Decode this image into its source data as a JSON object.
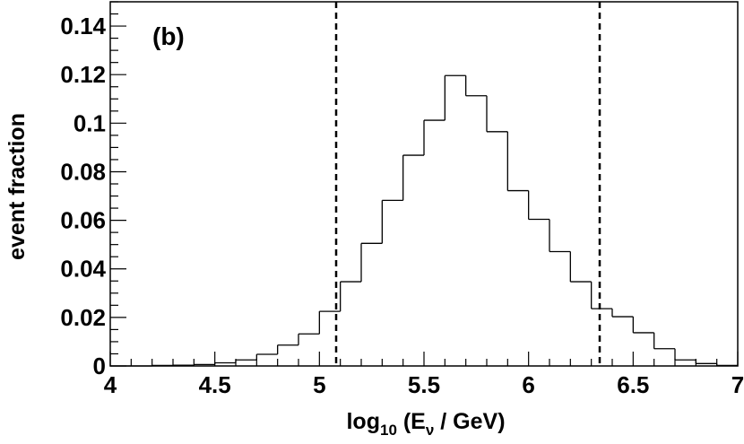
{
  "chart_data": {
    "type": "bar",
    "subtype": "step-histogram",
    "panel_label": "(b)",
    "xlabel": {
      "prefix": "log",
      "prefix_sub": "10",
      "mid": " (E",
      "mid_sub": "ν",
      "suffix": " / GeV)"
    },
    "ylabel": "event fraction",
    "xlim": [
      4,
      7
    ],
    "ylim": [
      0,
      0.15
    ],
    "x_ticks": [
      4,
      4.5,
      5,
      5.5,
      6,
      6.5,
      7
    ],
    "x_tick_labels": [
      "4",
      "4.5",
      "5",
      "5.5",
      "6",
      "6.5",
      "7"
    ],
    "y_ticks": [
      0,
      0.02,
      0.04,
      0.06,
      0.08,
      0.1,
      0.12,
      0.14
    ],
    "y_tick_labels": [
      "0",
      "0.02",
      "0.04",
      "0.06",
      "0.08",
      "0.1",
      "0.12",
      "0.14"
    ],
    "bin_edges": [
      4.0,
      4.1,
      4.2,
      4.3,
      4.4,
      4.5,
      4.6,
      4.7,
      4.8,
      4.9,
      5.0,
      5.1,
      5.2,
      5.3,
      5.4,
      5.5,
      5.6,
      5.7,
      5.8,
      5.9,
      6.0,
      6.1,
      6.2,
      6.3,
      6.4,
      6.5,
      6.6,
      6.7,
      6.8,
      6.9,
      7.0
    ],
    "values": [
      0.0,
      0.0,
      0.0002,
      0.0003,
      0.0006,
      0.0013,
      0.0025,
      0.0048,
      0.0086,
      0.0132,
      0.0225,
      0.0347,
      0.0505,
      0.0682,
      0.0868,
      0.1012,
      0.1196,
      0.1113,
      0.0965,
      0.0722,
      0.0604,
      0.0471,
      0.0347,
      0.0236,
      0.0203,
      0.0137,
      0.0071,
      0.0025,
      0.001,
      0.0002
    ],
    "vertical_lines": [
      5.08,
      6.34
    ],
    "vertical_line_style": "dashed",
    "grid": false,
    "colors": {
      "line": "#000000",
      "background": "#ffffff"
    }
  }
}
